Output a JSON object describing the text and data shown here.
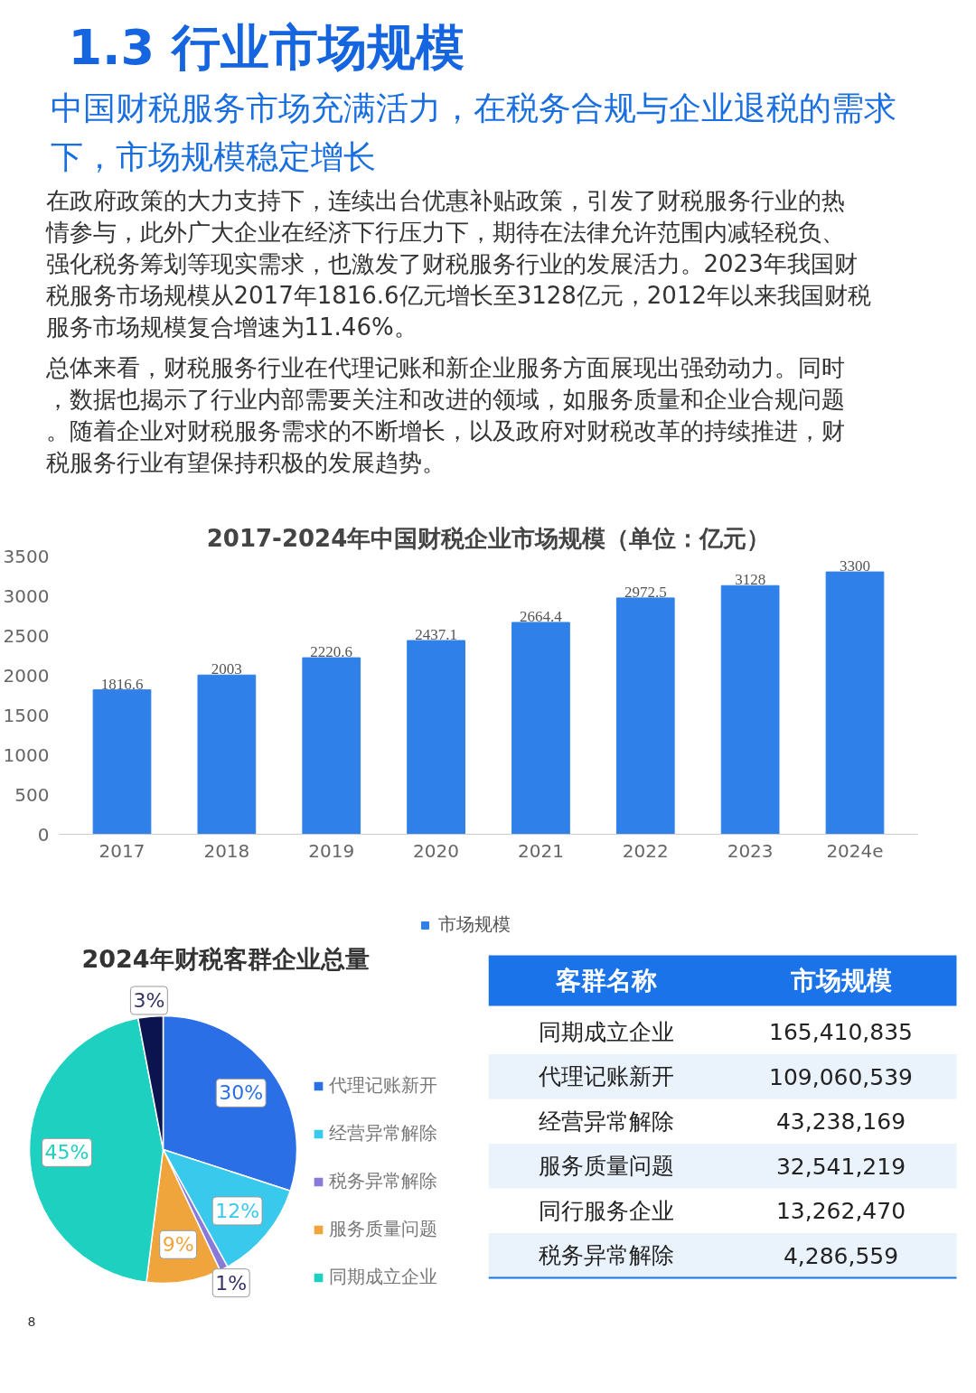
{
  "chart_data": [
    {
      "type": "other",
      "title": "1.3 行业市场规模",
      "subtitle": "中国财税服务市场充满活力，在税务合规与企业退税的需求下，市场规模稳定增长",
      "annotations": [
        "在政府政策的大力支持下，连续出台优惠补贴政策，引发了财税服务行业的热情参与，此外广大企业在经济下行压力下，期待在法律允许范围内减轻税负、强化税务筹划等现实需求，也激发了财税服务行业的发展活力。2023年我国财税服务市场规模从2017年1816.6亿元增长至3128亿元，2012年以来我国财税服务市场规模复合增速为11.46%。",
        "总体来看，财税服务行业在代理记账和新企业服务方面展现出强劲动力。同时，数据也揭示了行业内部需要关注和改进的领域，如服务质量和企业合规问题。随着企业对财税服务需求的不断增长，以及政府对财税改革的持续推进，财税服务行业有望保持积极的发展趋势。"
      ]
    },
    {
      "type": "bar",
      "title": "2017-2024年中国财税企业市场规模（单位：亿元）",
      "categories": [
        "2017",
        "2018",
        "2019",
        "2020",
        "2021",
        "2022",
        "2023",
        "2024e"
      ],
      "series": [
        {
          "name": "市场规模",
          "color": "#2f80e8",
          "values": [
            1816.6,
            2003,
            2220.6,
            2437.1,
            2664.4,
            2972.5,
            3128,
            3300
          ]
        }
      ],
      "ylim": [
        0,
        3500
      ],
      "yticks": [
        0,
        500,
        1000,
        1500,
        2000,
        2500,
        3000,
        3500
      ],
      "data_labels": true,
      "legend": "bottom",
      "grid": false
    },
    {
      "type": "pie",
      "title": "2024年财税客群企业总量",
      "categories": [
        "代理记账新开",
        "经营异常解除",
        "税务异常解除",
        "服务质量问题",
        "同期成立企业",
        null
      ],
      "values": [
        30,
        12,
        1,
        9,
        45,
        3
      ],
      "colors": [
        "#2a6fe6",
        "#38c9ec",
        "#8a7ad8",
        "#f0a43c",
        "#1ed0c0",
        "#0c1450"
      ],
      "value_labels": [
        "30%",
        "12%",
        "1%",
        "9%",
        "45%",
        "3%"
      ],
      "data_labels": true,
      "legend": "right",
      "annotations": [
        "8"
      ]
    },
    {
      "type": "other",
      "categories": [
        "同期成立企业",
        "代理记账新开",
        "经营异常解除",
        "服务质量问题",
        "同行服务企业",
        "税务异常解除"
      ],
      "value_labels": [
        "165,410,835",
        "109,060,539",
        "43,238,169",
        "32,541,219",
        "13,262,470",
        "4,286,559"
      ],
      "data_labels": true,
      "annotations": [
        "客群名称",
        "市场规模"
      ]
    }
  ]
}
